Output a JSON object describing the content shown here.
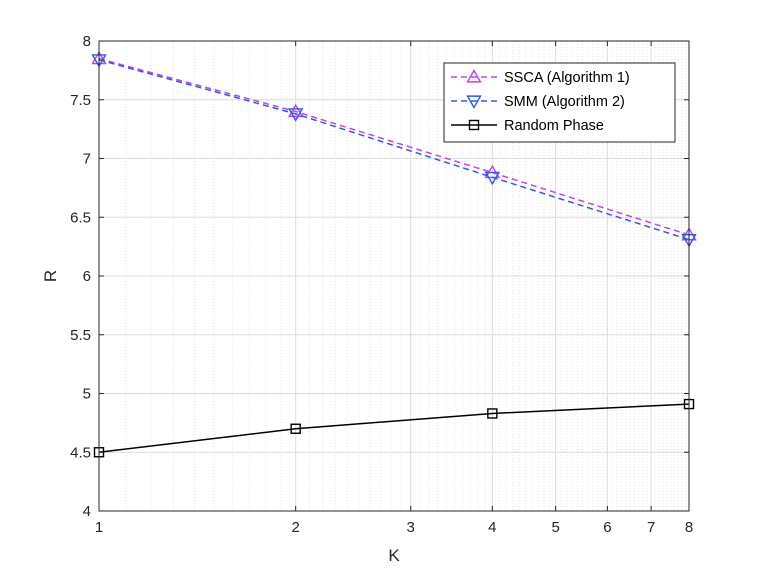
{
  "chart_data": {
    "type": "line",
    "xlabel": "K",
    "ylabel": "R",
    "xscale": "log",
    "xlim": [
      1,
      8
    ],
    "ylim": [
      4,
      8
    ],
    "xticks": [
      1,
      2,
      3,
      4,
      5,
      6,
      7,
      8
    ],
    "xtick_labels": [
      "1",
      "2",
      "3",
      "4",
      "5",
      "6",
      "7",
      "8"
    ],
    "yticks": [
      4,
      4.5,
      5,
      5.5,
      6,
      6.5,
      7,
      7.5,
      8
    ],
    "ytick_labels": [
      "4",
      "4.5",
      "5",
      "5.5",
      "6",
      "6.5",
      "7",
      "7.5",
      "8"
    ],
    "grid": true,
    "legend_position": "top-right",
    "x": [
      1,
      2,
      4,
      8
    ],
    "series": [
      {
        "name": "SSCA (Algorithm 1)",
        "values": [
          7.85,
          7.4,
          6.88,
          6.35
        ],
        "color": "#bf40ff",
        "dash": "dashed",
        "marker": "triangle-up"
      },
      {
        "name": "SMM (Algorithm 2)",
        "values": [
          7.84,
          7.38,
          6.84,
          6.31
        ],
        "color": "#2d5ae6",
        "dash": "dashed",
        "marker": "triangle-down"
      },
      {
        "name": "Random Phase",
        "values": [
          4.5,
          4.7,
          4.83,
          4.91
        ],
        "color": "#000000",
        "dash": "solid",
        "marker": "square"
      }
    ]
  }
}
